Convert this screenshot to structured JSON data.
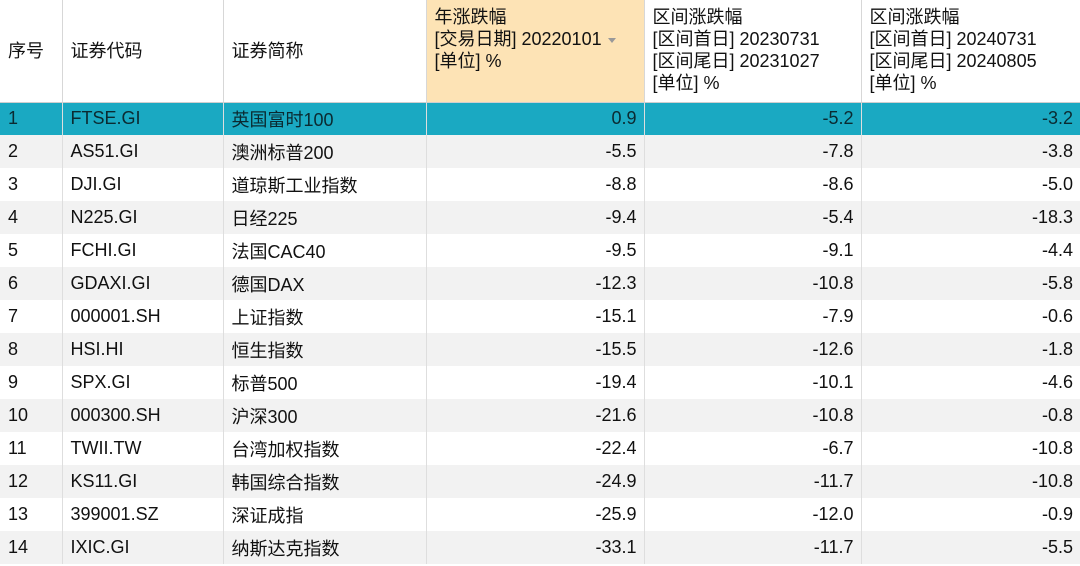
{
  "headers": [
    {
      "lines": [
        "序号"
      ]
    },
    {
      "lines": [
        "证券代码"
      ]
    },
    {
      "lines": [
        "证券简称"
      ]
    },
    {
      "lines": [
        "年涨跌幅",
        "[交易日期] 20220101",
        "[单位] %"
      ]
    },
    {
      "lines": [
        "区间涨跌幅",
        "[区间首日] 20230731",
        "[区间尾日] 20231027",
        "[单位] %"
      ]
    },
    {
      "lines": [
        "区间涨跌幅",
        "[区间首日] 20240731",
        "[区间尾日] 20240805",
        "[单位] %"
      ]
    }
  ],
  "sorted_column": 3,
  "selected_row": 0,
  "colors": {
    "selected_row": "#1aa9c2",
    "sorted_header": "#fde3b5",
    "stripe": "#f2f2f2"
  },
  "rows": [
    [
      "1",
      "FTSE.GI",
      "英国富时100",
      "0.9",
      "-5.2",
      "-3.2"
    ],
    [
      "2",
      "AS51.GI",
      "澳洲标普200",
      "-5.5",
      "-7.8",
      "-3.8"
    ],
    [
      "3",
      "DJI.GI",
      "道琼斯工业指数",
      "-8.8",
      "-8.6",
      "-5.0"
    ],
    [
      "4",
      "N225.GI",
      "日经225",
      "-9.4",
      "-5.4",
      "-18.3"
    ],
    [
      "5",
      "FCHI.GI",
      "法国CAC40",
      "-9.5",
      "-9.1",
      "-4.4"
    ],
    [
      "6",
      "GDAXI.GI",
      "德国DAX",
      "-12.3",
      "-10.8",
      "-5.8"
    ],
    [
      "7",
      "000001.SH",
      "上证指数",
      "-15.1",
      "-7.9",
      "-0.6"
    ],
    [
      "8",
      "HSI.HI",
      "恒生指数",
      "-15.5",
      "-12.6",
      "-1.8"
    ],
    [
      "9",
      "SPX.GI",
      "标普500",
      "-19.4",
      "-10.1",
      "-4.6"
    ],
    [
      "10",
      "000300.SH",
      "沪深300",
      "-21.6",
      "-10.8",
      "-0.8"
    ],
    [
      "11",
      "TWII.TW",
      "台湾加权指数",
      "-22.4",
      "-6.7",
      "-10.8"
    ],
    [
      "12",
      "KS11.GI",
      "韩国综合指数",
      "-24.9",
      "-11.7",
      "-10.8"
    ],
    [
      "13",
      "399001.SZ",
      "深证成指",
      "-25.9",
      "-12.0",
      "-0.9"
    ],
    [
      "14",
      "IXIC.GI",
      "纳斯达克指数",
      "-33.1",
      "-11.7",
      "-5.5"
    ]
  ]
}
